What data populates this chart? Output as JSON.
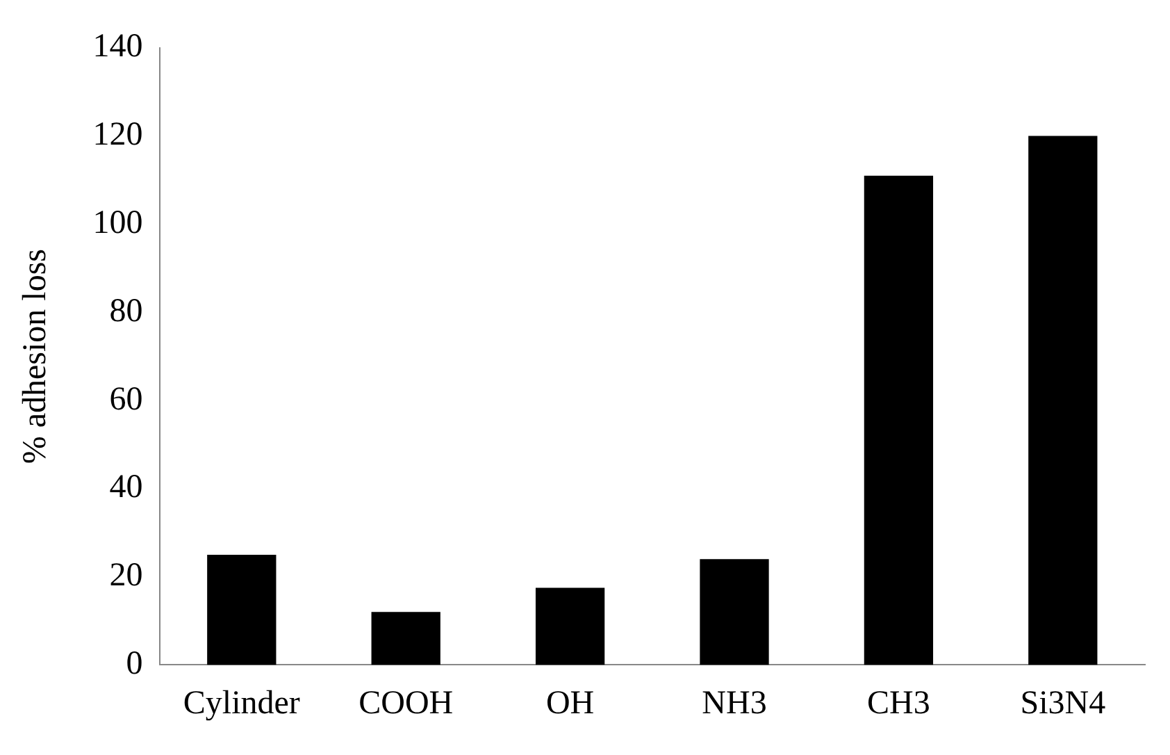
{
  "chart_data": {
    "type": "bar",
    "ylabel": "% adhesion loss",
    "categories": [
      "Cylinder",
      "COOH",
      "OH",
      "NH3",
      "CH3",
      "Si3N4"
    ],
    "values": [
      25,
      12,
      17.5,
      24,
      111,
      120
    ],
    "color": "#000000",
    "ylim": [
      0,
      140
    ],
    "yticks": [
      0,
      20,
      40,
      60,
      80,
      100,
      120,
      140
    ],
    "grid": false,
    "legend": false
  }
}
